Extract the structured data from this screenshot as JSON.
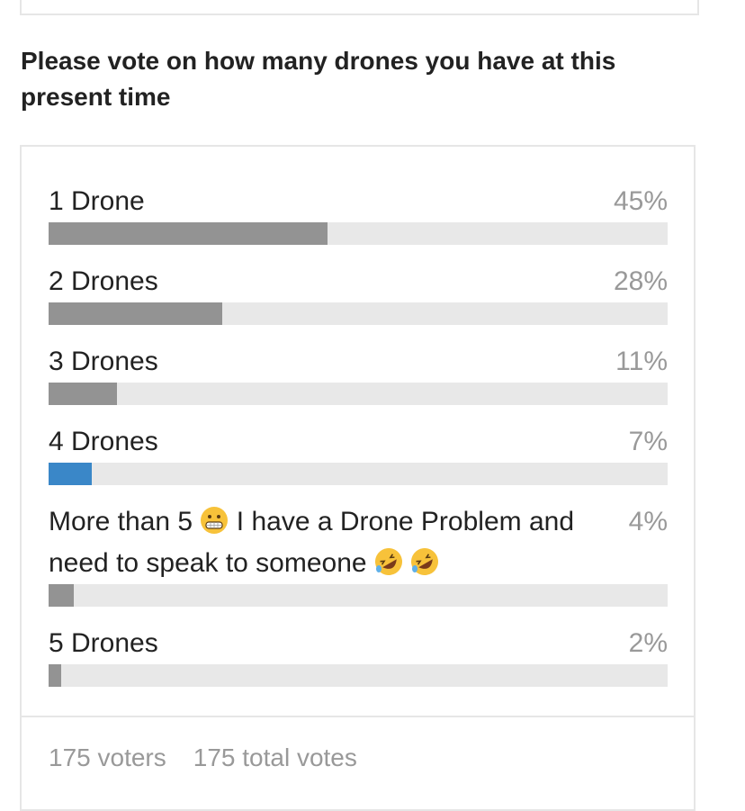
{
  "poll": {
    "title": "Please vote on how many drones you have at this present time",
    "accent_color": "#3a87c8",
    "bar_color": "#939393",
    "options": [
      {
        "label": "1 Drone",
        "percent_label": "45%",
        "percent": 45,
        "selected": false
      },
      {
        "label": "2 Drones",
        "percent_label": "28%",
        "percent": 28,
        "selected": false
      },
      {
        "label": "3 Drones",
        "percent_label": "11%",
        "percent": 11,
        "selected": false
      },
      {
        "label": "4 Drones",
        "percent_label": "7%",
        "percent": 7,
        "selected": true
      },
      {
        "label_part1": "More than 5",
        "emoji1": "grimacing-face",
        "label_part2": "I have a Drone Problem and need to speak to someone",
        "emoji2": "rolling-on-floor-laughing",
        "percent_label": "4%",
        "percent": 4,
        "selected": false
      },
      {
        "label": "5 Drones",
        "percent_label": "2%",
        "percent": 2,
        "selected": false
      }
    ],
    "footer": {
      "voters": "175 voters",
      "total_votes": "175 total votes"
    }
  }
}
